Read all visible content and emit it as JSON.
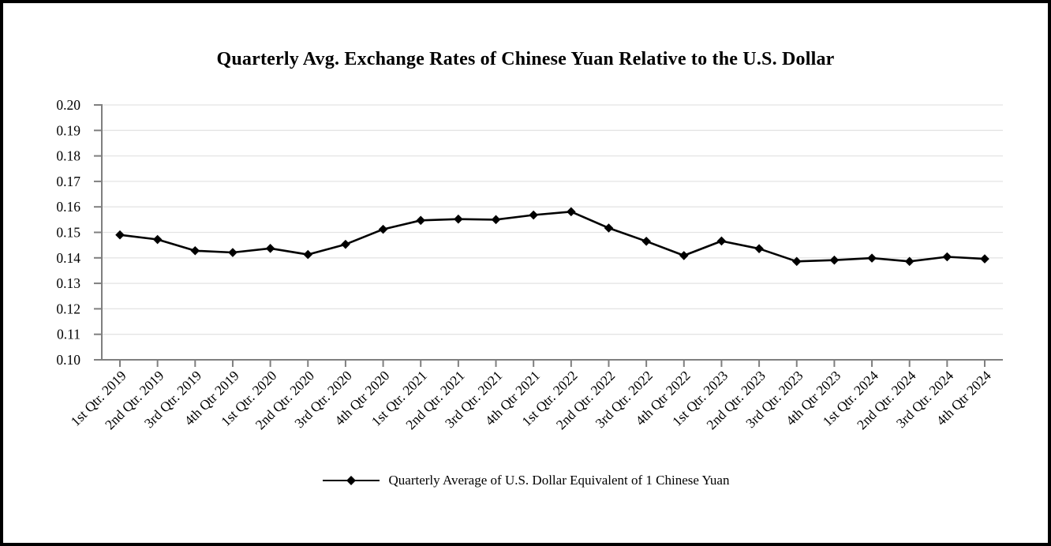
{
  "page": {
    "background": "#ffffff",
    "border_color": "#000000"
  },
  "chart_data": {
    "type": "line",
    "title": "Quarterly Avg. Exchange Rates of Chinese Yuan Relative to the U.S. Dollar",
    "categories": [
      "1st Qtr. 2019",
      "2nd Qtr. 2019",
      "3rd Qtr. 2019",
      "4th Qtr 2019",
      "1st Qtr. 2020",
      "2nd Qtr. 2020",
      "3rd Qtr. 2020",
      "4th Qtr 2020",
      "1st Qtr. 2021",
      "2nd Qtr. 2021",
      "3rd Qtr. 2021",
      "4th Qtr 2021",
      "1st Qtr. 2022",
      "2nd Qtr. 2022",
      "3rd Qtr. 2022",
      "4th Qtr 2022",
      "1st Qtr. 2023",
      "2nd Qtr. 2023",
      "3rd Qtr. 2023",
      "4th Qtr 2023",
      "1st Qtr. 2024",
      "2nd Qtr. 2024",
      "3rd Qtr. 2024",
      "4th Qtr 2024"
    ],
    "series": [
      {
        "name": "Quarterly Average of U.S. Dollar Equivalent of 1 Chinese Yuan",
        "values": [
          0.149,
          0.1472,
          0.1428,
          0.1421,
          0.1437,
          0.1413,
          0.1453,
          0.1512,
          0.1547,
          0.1552,
          0.155,
          0.1568,
          0.1581,
          0.1517,
          0.1465,
          0.1409,
          0.1466,
          0.1436,
          0.1386,
          0.1391,
          0.1399,
          0.1386,
          0.1404,
          0.1396
        ]
      }
    ],
    "xlabel": "",
    "ylabel": "",
    "ylim": [
      0.1,
      0.2
    ],
    "y_tick_step": 0.01,
    "y_ticks": [
      "0.20",
      "0.19",
      "0.18",
      "0.17",
      "0.16",
      "0.15",
      "0.14",
      "0.13",
      "0.12",
      "0.11",
      "0.10"
    ],
    "grid": "horizontal",
    "legend_position": "bottom",
    "marker": "diamond",
    "x_label_rotation_deg": 45,
    "colors": {
      "line": "#000000",
      "marker": "#000000",
      "axis": "#7f7f7f",
      "gridline": "#e4e4e4",
      "text": "#000000"
    }
  }
}
